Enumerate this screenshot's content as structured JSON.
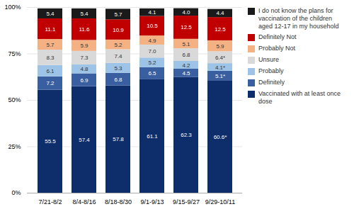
{
  "chart_data": {
    "type": "bar",
    "stacked": true,
    "categories": [
      "7/21-8/2",
      "8/4-8/16",
      "8/18-8/30",
      "9/1-9/13",
      "9/15-9/27",
      "9/29-10/11"
    ],
    "series": [
      {
        "name": "Vaccinated with at least once\ndose",
        "color": "#0d2d6b",
        "values": [
          55.5,
          57.4,
          57.8,
          61.1,
          62.3,
          60.6
        ],
        "value_labels": [
          "55.5",
          "57.4",
          "57.8",
          "61.1",
          "62.3",
          "60.6*"
        ]
      },
      {
        "name": "Definitely",
        "color": "#3a5fa0",
        "values": [
          7.2,
          6.9,
          6.8,
          6.5,
          4.5,
          5.1
        ],
        "value_labels": [
          "7.2",
          "6.9",
          "6.8",
          "6.5",
          "4.5",
          "5.1*"
        ]
      },
      {
        "name": "Probably",
        "color": "#9dc3e6",
        "values": [
          6.1,
          4.8,
          5.3,
          5.2,
          4.2,
          4.1
        ],
        "value_labels": [
          "6.1",
          "4.8",
          "5.3",
          "5.2",
          "4.2",
          "4.1*"
        ]
      },
      {
        "name": "Unsure",
        "color": "#d9d9d9",
        "values": [
          8.3,
          7.3,
          7.4,
          7.0,
          6.8,
          6.4
        ],
        "value_labels": [
          "8.3",
          "7.3",
          "7.4",
          "7.0",
          "6.8",
          "6.4*"
        ]
      },
      {
        "name": "Probably Not",
        "color": "#f4b183",
        "values": [
          5.7,
          5.9,
          5.2,
          4.9,
          5.1,
          5.9
        ],
        "value_labels": [
          "5.7",
          "5.9",
          "5.2",
          "4.9",
          "5.1",
          "5.9"
        ]
      },
      {
        "name": "Definitely Not",
        "color": "#c00000",
        "values": [
          11.1,
          11.6,
          10.9,
          10.5,
          12.5,
          12.5
        ],
        "value_labels": [
          "11.1",
          "11.6",
          "10.9",
          "10.5",
          "12.5",
          "12.5"
        ]
      },
      {
        "name": "I do not know the plans for\nvaccination of the children\naged 12-17 in my household",
        "color": "#1a1a1a",
        "values": [
          5.4,
          5.4,
          5.7,
          4.1,
          4.0,
          4.4
        ],
        "value_labels": [
          "5.4",
          "5.4",
          "5.7",
          "4.1",
          "4.0",
          "4.4"
        ]
      }
    ],
    "ylim": [
      0,
      100
    ],
    "yticks": [
      {
        "value": 0,
        "label": "0%"
      },
      {
        "value": 25,
        "label": "25%"
      },
      {
        "value": 50,
        "label": "50%"
      },
      {
        "value": 75,
        "label": "75%"
      },
      {
        "value": 100,
        "label": "100%"
      }
    ],
    "grid": true,
    "data_labels": true,
    "legend": "right"
  }
}
